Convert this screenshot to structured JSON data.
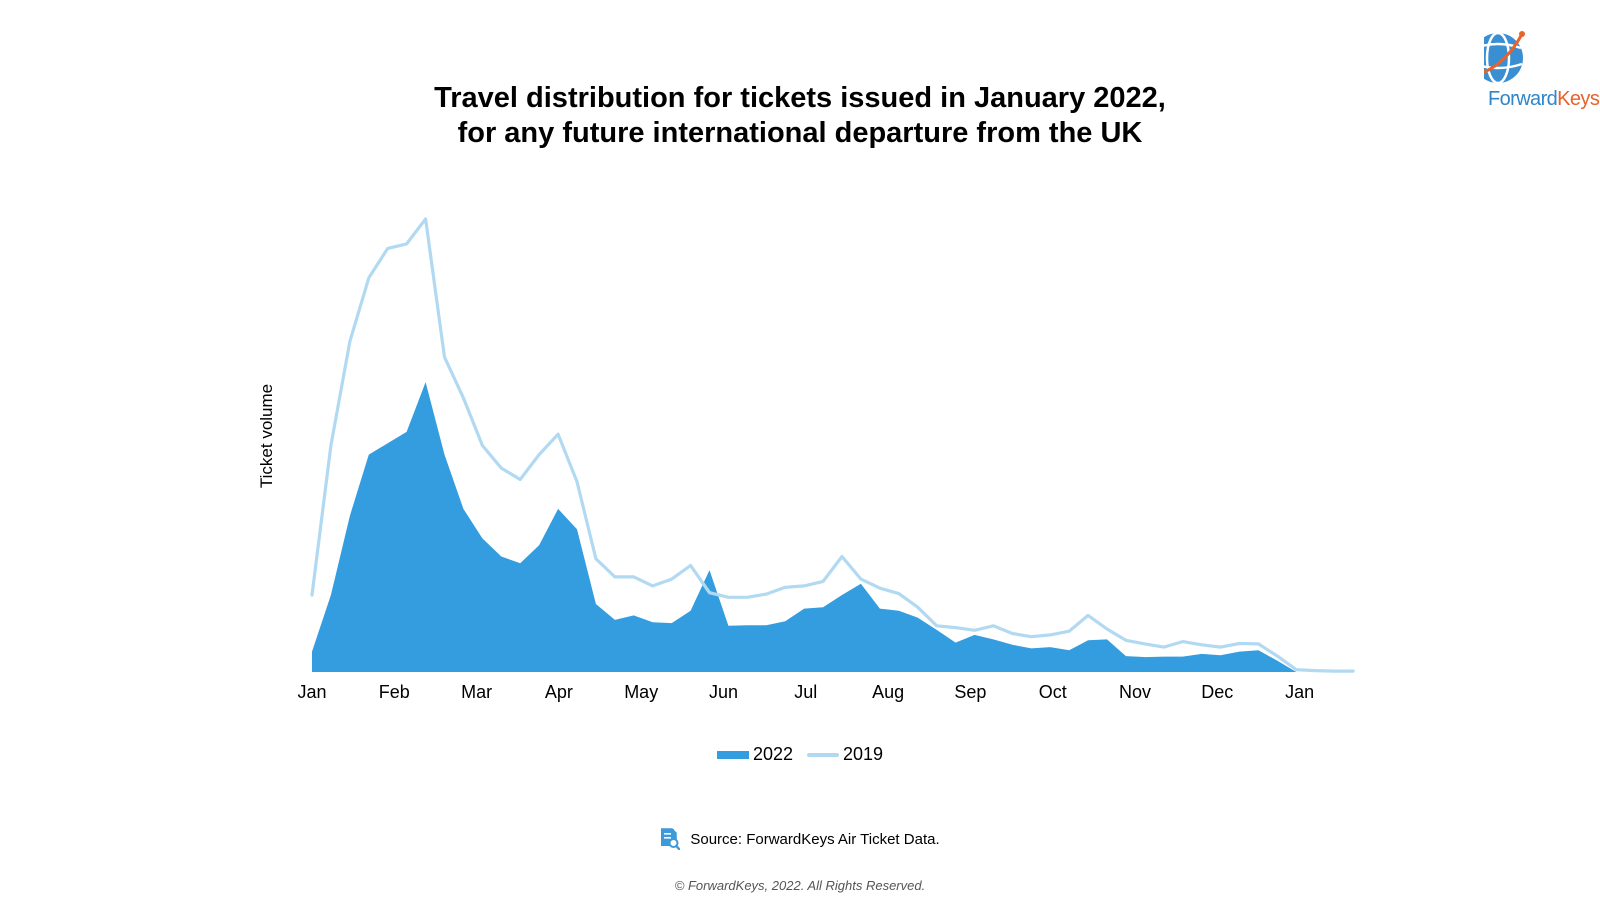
{
  "header": {
    "title_line1": "Travel distribution for tickets issued in January 2022,",
    "title_line2": "for any future international departure from the UK"
  },
  "logo": {
    "text_a": "Forward",
    "text_b": "Keys"
  },
  "source": {
    "text": "Source: ForwardKeys Air Ticket Data.",
    "icon": "document-search-icon"
  },
  "copyright": "© ForwardKeys, 2022. All Rights Reserved.",
  "colors": {
    "area_2022": "#349ddf",
    "line_2019": "#b2d9f2",
    "logo_blue": "#2f86c9",
    "logo_orange": "#e8632c"
  },
  "chart_data": {
    "type": "area",
    "ylabel": "Ticket volume",
    "xlabel": "",
    "x_ticks": [
      "Jan",
      "Feb",
      "Mar",
      "Apr",
      "May",
      "Jun",
      "Jul",
      "Aug",
      "Sep",
      "Oct",
      "Nov",
      "Dec",
      "Jan"
    ],
    "ylim": [
      0,
      100
    ],
    "grid": false,
    "legend_position": "bottom-center",
    "series": [
      {
        "name": "2022",
        "style": "filled-area",
        "x": [
          0.0,
          0.23,
          0.46,
          0.69,
          0.92,
          1.15,
          1.38,
          1.61,
          1.84,
          2.07,
          2.3,
          2.53,
          2.76,
          2.99,
          3.22,
          3.45,
          3.68,
          3.91,
          4.14,
          4.37,
          4.6,
          4.83,
          5.06,
          5.29,
          5.52,
          5.75,
          5.98,
          6.21,
          6.44,
          6.67,
          6.9,
          7.13,
          7.36,
          7.59,
          7.82,
          8.05,
          8.28,
          8.51,
          8.74,
          8.97,
          9.2,
          9.43,
          9.66,
          9.89,
          10.12,
          10.35,
          10.58,
          10.81,
          11.04,
          11.27,
          11.5,
          11.73,
          11.96,
          12.19,
          12.42,
          12.65
        ],
        "values": [
          4.5,
          17,
          34.5,
          48,
          50.5,
          53,
          64,
          48,
          36,
          29.5,
          25.5,
          24,
          28,
          36,
          31.5,
          15,
          11.5,
          12.5,
          11,
          10.8,
          13.5,
          22.5,
          10.2,
          10.3,
          10.3,
          11.2,
          14,
          14.3,
          17,
          19.5,
          14,
          13.5,
          12,
          9.3,
          6.5,
          8.2,
          7.2,
          6,
          5.2,
          5.5,
          4.8,
          7,
          7.2,
          3.5,
          3.3,
          3.4,
          3.4,
          4,
          3.7,
          4.5,
          4.8,
          2.5,
          0,
          0,
          0,
          0
        ]
      },
      {
        "name": "2019",
        "style": "line",
        "x": [
          0.0,
          0.23,
          0.46,
          0.69,
          0.92,
          1.15,
          1.38,
          1.61,
          1.84,
          2.07,
          2.3,
          2.53,
          2.76,
          2.99,
          3.22,
          3.45,
          3.68,
          3.91,
          4.14,
          4.37,
          4.6,
          4.83,
          5.06,
          5.29,
          5.52,
          5.75,
          5.98,
          6.21,
          6.44,
          6.67,
          6.9,
          7.13,
          7.36,
          7.59,
          7.82,
          8.05,
          8.28,
          8.51,
          8.74,
          8.97,
          9.2,
          9.43,
          9.66,
          9.89,
          10.12,
          10.35,
          10.58,
          10.81,
          11.04,
          11.27,
          11.5,
          11.73,
          11.96,
          12.19,
          12.42,
          12.65
        ],
        "values": [
          17,
          50,
          73,
          87,
          93.5,
          94.5,
          100,
          69.5,
          60.5,
          50,
          45,
          42.5,
          48,
          52.5,
          42,
          25,
          21,
          21,
          19,
          20.5,
          23.5,
          17.5,
          16.5,
          16.5,
          17.2,
          18.7,
          19,
          20,
          25.5,
          20.5,
          18.5,
          17.3,
          14.3,
          10.2,
          9.8,
          9.2,
          10.2,
          8.5,
          7.8,
          8.2,
          9,
          12.5,
          9.5,
          7,
          6.2,
          5.5,
          6.7,
          6,
          5.5,
          6.3,
          6.2,
          3.5,
          0.5,
          0.3,
          0.2,
          0.2
        ]
      }
    ]
  }
}
